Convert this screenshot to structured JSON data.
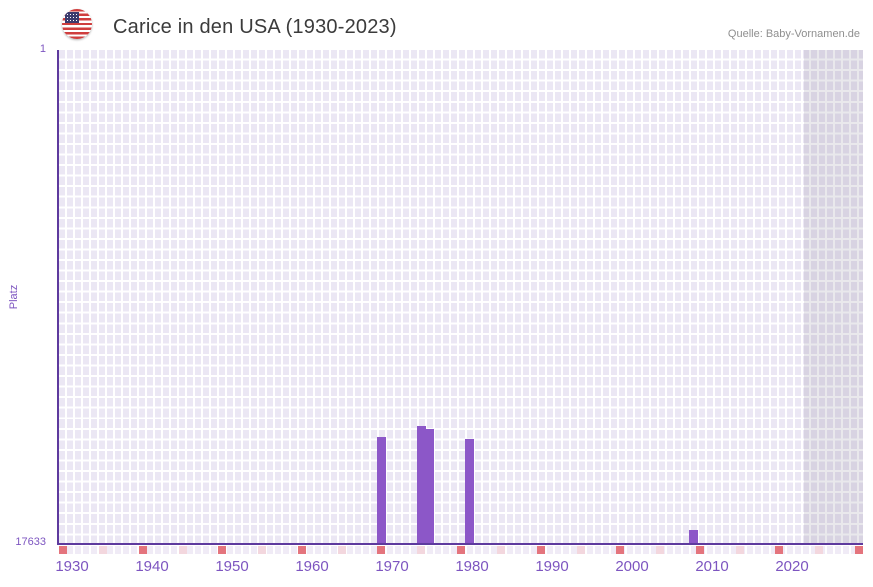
{
  "header": {
    "title": "Carice in den USA (1930-2023)",
    "source": "Quelle: Baby-Vornamen.de",
    "flag_icon": "us-flag"
  },
  "chart_data": {
    "type": "bar",
    "title": "Carice in den USA (1930-2023)",
    "source": "Quelle: Baby-Vornamen.de",
    "ylabel": "Platz",
    "y_axis": {
      "top_label": "1",
      "bottom_label": "17633",
      "min": 1,
      "max": 17633,
      "inverted": true
    },
    "x_axis": {
      "tick_years": [
        1930,
        1940,
        1950,
        1960,
        1970,
        1980,
        1990,
        2000,
        2010,
        2020
      ],
      "range_start": 1930,
      "range_end": 2023
    },
    "points": [
      {
        "year": 1969,
        "platz": 13840
      },
      {
        "year": 1974,
        "platz": 13450
      },
      {
        "year": 1975,
        "platz": 13560
      },
      {
        "year": 1980,
        "platz": 13910
      },
      {
        "year": 2008,
        "platz": 17170
      }
    ],
    "shaded_region": {
      "start_year": 2022
    },
    "legend": null,
    "grid": "checkered"
  },
  "colors": {
    "bar": "#8c57c8",
    "axis_line": "#5e3a9e",
    "tick_label": "#7d55c0",
    "grid_cell": "#ebe7f4",
    "decade_marker_red": "#e4747d",
    "half_decade_marker_pink": "#f3d7de",
    "title_text": "#3b3b3b",
    "source_text": "#8f8f8f"
  }
}
